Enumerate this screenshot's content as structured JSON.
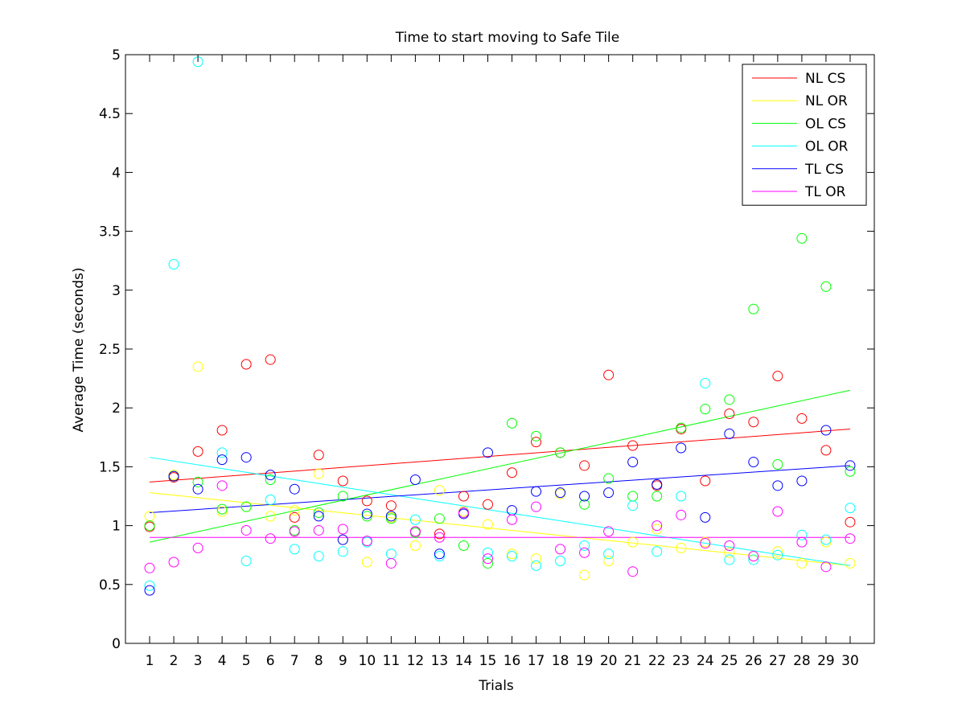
{
  "chart_data": {
    "type": "scatter",
    "title": "Time to start moving to Safe Tile",
    "xlabel": "Trials",
    "ylabel": "Average Time (seconds)",
    "xlim": [
      0,
      31
    ],
    "ylim": [
      0,
      5
    ],
    "x": [
      1,
      2,
      3,
      4,
      5,
      6,
      7,
      8,
      9,
      10,
      11,
      12,
      13,
      14,
      15,
      16,
      17,
      18,
      19,
      20,
      21,
      22,
      23,
      24,
      25,
      26,
      27,
      28,
      29,
      30
    ],
    "yticks": [
      "0",
      "0.5",
      "1",
      "1.5",
      "2",
      "2.5",
      "3",
      "3.5",
      "4",
      "4.5",
      "5"
    ],
    "xticks": [
      "1",
      "2",
      "3",
      "4",
      "5",
      "6",
      "7",
      "8",
      "9",
      "10",
      "11",
      "12",
      "13",
      "14",
      "15",
      "16",
      "17",
      "18",
      "19",
      "20",
      "21",
      "22",
      "23",
      "24",
      "25",
      "26",
      "27",
      "28",
      "29",
      "30"
    ],
    "grid": false,
    "legend_position": "top-right",
    "series": [
      {
        "name": "NL CS",
        "color": "#ff0000",
        "values": [
          0.99,
          1.41,
          1.63,
          1.81,
          2.37,
          2.41,
          1.07,
          1.6,
          1.38,
          1.21,
          1.17,
          0.95,
          0.93,
          1.25,
          1.18,
          1.45,
          1.71,
          1.62,
          1.51,
          2.28,
          1.68,
          1.34,
          1.82,
          1.38,
          1.95,
          1.88,
          2.27,
          1.91,
          1.64,
          1.03
        ],
        "trend": [
          1.37,
          1.82
        ]
      },
      {
        "name": "NL OR",
        "color": "#ffff00",
        "values": [
          1.08,
          1.43,
          2.35,
          1.12,
          1.16,
          1.08,
          1.13,
          1.44,
          0.88,
          0.69,
          1.07,
          0.83,
          1.3,
          1.12,
          1.01,
          0.76,
          0.72,
          1.27,
          0.58,
          0.7,
          0.86,
          0.97,
          0.81,
          0.86,
          0.77,
          0.74,
          0.78,
          0.68,
          0.86,
          0.68
        ],
        "trend": [
          1.28,
          0.66
        ]
      },
      {
        "name": "OL CS",
        "color": "#00ff00",
        "values": [
          1.0,
          1.42,
          1.37,
          1.14,
          1.16,
          1.39,
          0.96,
          1.11,
          1.25,
          1.08,
          1.06,
          0.94,
          1.06,
          0.83,
          0.68,
          1.87,
          1.76,
          1.62,
          1.18,
          1.4,
          1.25,
          1.25,
          1.83,
          1.99,
          2.07,
          2.84,
          1.52,
          3.44,
          3.03,
          1.46
        ],
        "trend": [
          0.86,
          2.15
        ]
      },
      {
        "name": "OL OR",
        "color": "#00ffff",
        "values": [
          0.49,
          3.22,
          4.94,
          1.62,
          0.7,
          1.22,
          0.8,
          0.74,
          0.78,
          0.86,
          0.76,
          1.05,
          0.74,
          1.11,
          0.77,
          0.74,
          0.66,
          0.7,
          0.83,
          0.76,
          1.17,
          0.78,
          1.25,
          2.21,
          0.71,
          0.71,
          0.75,
          0.92,
          0.88,
          1.15
        ],
        "trend": [
          1.58,
          0.66
        ]
      },
      {
        "name": "TL CS",
        "color": "#0000ff",
        "values": [
          0.45,
          1.42,
          1.31,
          1.56,
          1.58,
          1.43,
          1.31,
          1.08,
          0.88,
          1.1,
          1.08,
          1.39,
          0.76,
          1.1,
          1.62,
          1.13,
          1.29,
          1.28,
          1.25,
          1.28,
          1.54,
          1.35,
          1.66,
          1.07,
          1.78,
          1.54,
          1.34,
          1.38,
          1.81,
          1.51
        ],
        "trend": [
          1.11,
          1.51
        ]
      },
      {
        "name": "TL OR",
        "color": "#ff00ff",
        "values": [
          0.64,
          0.69,
          0.81,
          1.34,
          0.96,
          0.89,
          0.95,
          0.96,
          0.97,
          0.87,
          0.68,
          0.95,
          0.9,
          1.11,
          0.72,
          1.05,
          1.16,
          0.8,
          0.77,
          0.95,
          0.61,
          1.0,
          1.09,
          0.85,
          0.83,
          0.74,
          1.12,
          0.86,
          0.65,
          0.89
        ],
        "trend": [
          0.9,
          0.9
        ]
      }
    ]
  }
}
